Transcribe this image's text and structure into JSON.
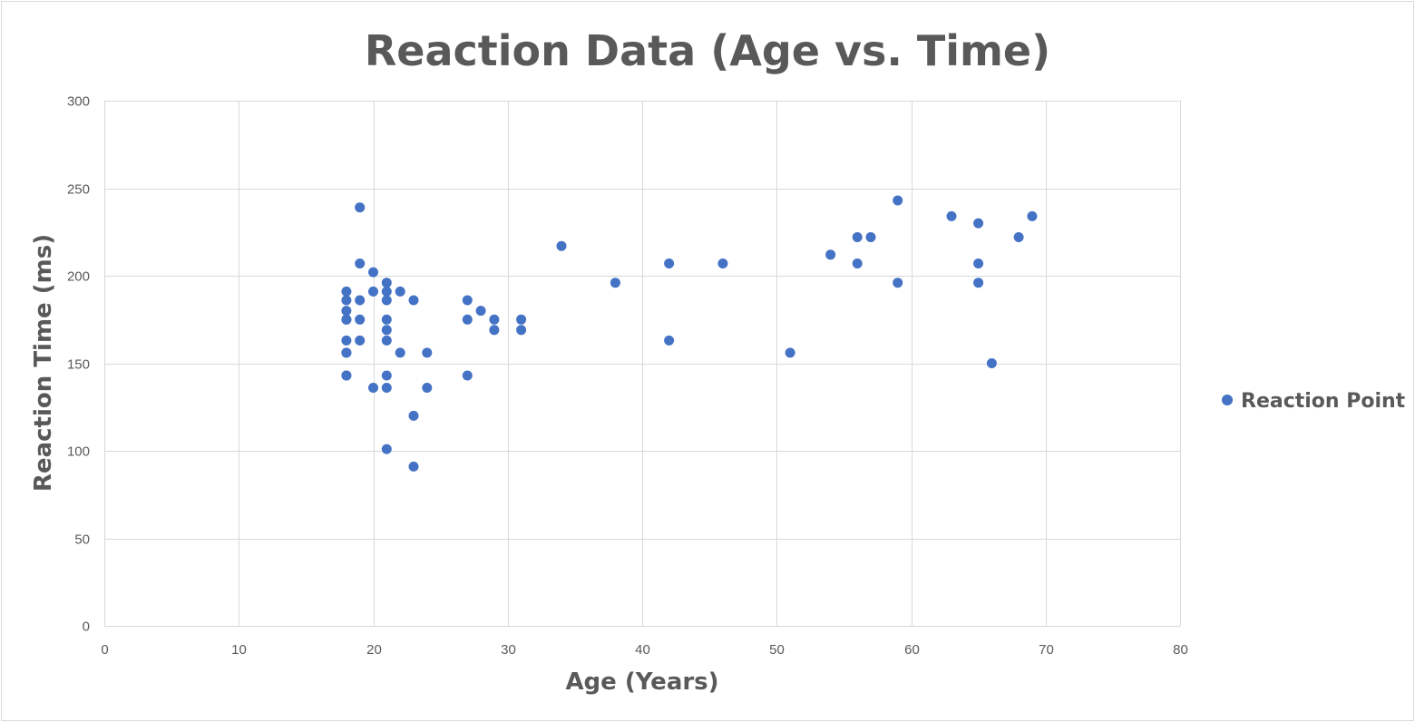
{
  "chart_data": {
    "type": "scatter",
    "title": "Reaction Data (Age vs. Time)",
    "xlabel": "Age (Years)",
    "ylabel": "Reaction Time (ms)",
    "xlim": [
      0,
      80
    ],
    "ylim": [
      0,
      300
    ],
    "x_ticks": [
      0,
      10,
      20,
      30,
      40,
      50,
      60,
      70,
      80
    ],
    "y_ticks": [
      0,
      50,
      100,
      150,
      200,
      250,
      300
    ],
    "x_tick_labels": [
      "0",
      "10",
      "20",
      "30",
      "40",
      "50",
      "60",
      "70",
      "80"
    ],
    "y_tick_labels": [
      "0",
      "50",
      "100",
      "150",
      "200",
      "250",
      "300"
    ],
    "grid": true,
    "legend_position": "right",
    "series": [
      {
        "name": "Reaction Point",
        "color": "#4472c4",
        "points": [
          [
            18,
            191
          ],
          [
            18,
            186
          ],
          [
            18,
            180
          ],
          [
            18,
            175
          ],
          [
            18,
            175
          ],
          [
            18,
            163
          ],
          [
            18,
            156
          ],
          [
            18,
            156
          ],
          [
            18,
            143
          ],
          [
            18,
            143
          ],
          [
            19,
            239
          ],
          [
            19,
            207
          ],
          [
            19,
            186
          ],
          [
            19,
            175
          ],
          [
            19,
            163
          ],
          [
            20,
            202
          ],
          [
            20,
            191
          ],
          [
            20,
            136
          ],
          [
            21,
            196
          ],
          [
            21,
            191
          ],
          [
            21,
            186
          ],
          [
            21,
            175
          ],
          [
            21,
            169
          ],
          [
            21,
            163
          ],
          [
            21,
            143
          ],
          [
            21,
            136
          ],
          [
            21,
            101
          ],
          [
            22,
            191
          ],
          [
            22,
            156
          ],
          [
            23,
            186
          ],
          [
            23,
            120
          ],
          [
            23,
            91
          ],
          [
            24,
            156
          ],
          [
            24,
            136
          ],
          [
            27,
            186
          ],
          [
            27,
            175
          ],
          [
            27,
            143
          ],
          [
            28,
            180
          ],
          [
            29,
            175
          ],
          [
            29,
            169
          ],
          [
            31,
            175
          ],
          [
            31,
            169
          ],
          [
            34,
            217
          ],
          [
            38,
            196
          ],
          [
            42,
            207
          ],
          [
            42,
            163
          ],
          [
            46,
            207
          ],
          [
            51,
            156
          ],
          [
            54,
            212
          ],
          [
            56,
            222
          ],
          [
            56,
            207
          ],
          [
            57,
            222
          ],
          [
            59,
            243
          ],
          [
            59,
            196
          ],
          [
            63,
            234
          ],
          [
            65,
            230
          ],
          [
            65,
            207
          ],
          [
            65,
            196
          ],
          [
            66,
            150
          ],
          [
            68,
            222
          ],
          [
            69,
            234
          ]
        ]
      }
    ]
  }
}
